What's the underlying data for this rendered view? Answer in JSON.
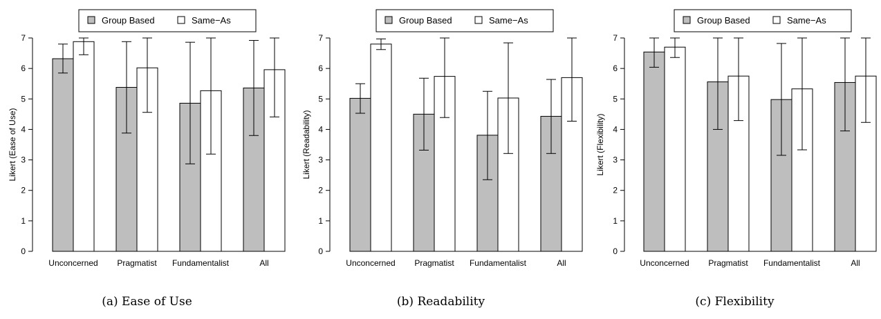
{
  "legend": {
    "series_a": "Group Based",
    "series_b": "Same−As"
  },
  "colors": {
    "series_a_fill": "#bebebe",
    "series_b_fill": "#ffffff",
    "stroke": "#000000"
  },
  "chart_data": [
    {
      "type": "bar",
      "caption": "(a) Ease of Use",
      "ylabel": "Likert (Ease of Use)",
      "ylim": [
        0,
        7
      ],
      "yticks": [
        "0",
        "1",
        "2",
        "3",
        "4",
        "5",
        "6",
        "7"
      ],
      "legend_position": "top-center",
      "categories": [
        "Unconcerned",
        "Pragmatist",
        "Fundamentalist",
        "All"
      ],
      "series": [
        {
          "name": "Group Based",
          "values": [
            6.32,
            5.38,
            4.86,
            5.36
          ],
          "err_low": [
            5.85,
            3.88,
            2.87,
            3.8
          ],
          "err_high": [
            6.8,
            6.88,
            6.86,
            6.92
          ]
        },
        {
          "name": "Same−As",
          "values": [
            6.88,
            6.02,
            5.27,
            5.96
          ],
          "err_low": [
            6.45,
            4.56,
            3.19,
            4.41
          ],
          "err_high": [
            7.0,
            7.0,
            7.0,
            7.0
          ]
        }
      ]
    },
    {
      "type": "bar",
      "caption": "(b) Readability",
      "ylabel": "Likert (Readability)",
      "ylim": [
        0,
        7
      ],
      "yticks": [
        "0",
        "1",
        "2",
        "3",
        "4",
        "5",
        "6",
        "7"
      ],
      "legend_position": "top-center",
      "categories": [
        "Unconcerned",
        "Pragmatist",
        "Fundamentalist",
        "All"
      ],
      "series": [
        {
          "name": "Group Based",
          "values": [
            5.02,
            4.5,
            3.81,
            4.43
          ],
          "err_low": [
            4.53,
            3.32,
            2.35,
            3.21
          ],
          "err_high": [
            5.5,
            5.68,
            5.25,
            5.64
          ]
        },
        {
          "name": "Same−As",
          "values": [
            6.8,
            5.74,
            5.03,
            5.7
          ],
          "err_low": [
            6.62,
            4.39,
            3.21,
            4.27
          ],
          "err_high": [
            6.97,
            7.0,
            6.84,
            7.0
          ]
        }
      ]
    },
    {
      "type": "bar",
      "caption": "(c) Flexibility",
      "ylabel": "Likert (Flexibility)",
      "ylim": [
        0,
        7
      ],
      "yticks": [
        "0",
        "1",
        "2",
        "3",
        "4",
        "5",
        "6",
        "7"
      ],
      "legend_position": "top-center",
      "categories": [
        "Unconcerned",
        "Pragmatist",
        "Fundamentalist",
        "All"
      ],
      "series": [
        {
          "name": "Group Based",
          "values": [
            6.54,
            5.56,
            4.98,
            5.54
          ],
          "err_low": [
            6.04,
            4.0,
            3.15,
            3.95
          ],
          "err_high": [
            7.0,
            7.0,
            6.82,
            7.0
          ]
        },
        {
          "name": "Same−As",
          "values": [
            6.7,
            5.75,
            5.33,
            5.75
          ],
          "err_low": [
            6.36,
            4.29,
            3.33,
            4.23
          ],
          "err_high": [
            7.0,
            7.0,
            7.0,
            7.0
          ]
        }
      ]
    }
  ]
}
